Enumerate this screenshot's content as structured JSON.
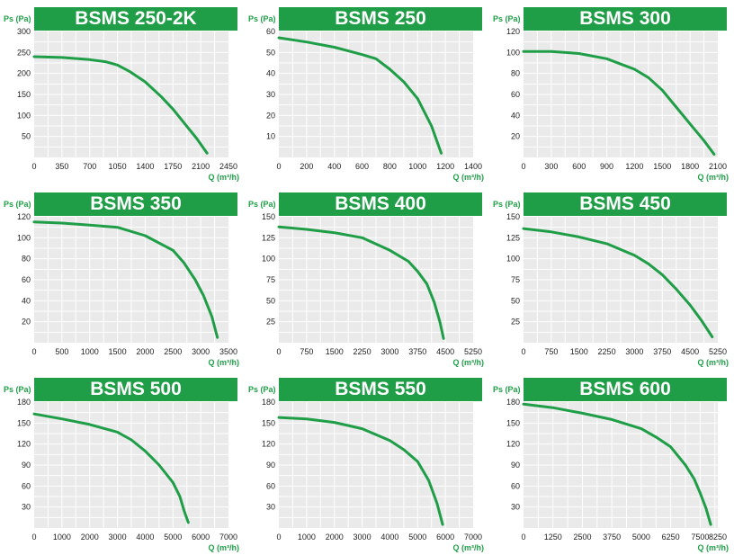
{
  "colors": {
    "banner": "#1f9e47",
    "curve": "#1f9e47",
    "plot_bg": "#eaeaea",
    "grid": "#ffffff",
    "axis_label": "#1f9e47"
  },
  "chart_data": [
    {
      "type": "line",
      "title": "BSMS 250-2K",
      "ylabel": "Ps (Pa)",
      "xlabel": "Q (m³/h)",
      "xticks": [
        0,
        350,
        700,
        1050,
        1400,
        1750,
        2100,
        2450
      ],
      "yticks": [
        50,
        100,
        150,
        200,
        250,
        300
      ],
      "xlim": [
        0,
        2450
      ],
      "ylim": [
        0,
        300
      ],
      "grid": true,
      "series": [
        {
          "x": [
            0,
            350,
            700,
            900,
            1050,
            1200,
            1400,
            1600,
            1750,
            1900,
            2050,
            2180
          ],
          "y": [
            240,
            238,
            233,
            228,
            220,
            205,
            180,
            145,
            115,
            80,
            45,
            10
          ]
        }
      ]
    },
    {
      "type": "line",
      "title": "BSMS 250",
      "ylabel": "Ps (Pa)",
      "xlabel": "Q (m³/h)",
      "xticks": [
        0,
        200,
        400,
        600,
        800,
        1000,
        1200,
        1400
      ],
      "yticks": [
        10,
        20,
        30,
        40,
        50,
        60
      ],
      "xlim": [
        0,
        1400
      ],
      "ylim": [
        0,
        60
      ],
      "grid": true,
      "series": [
        {
          "x": [
            0,
            200,
            400,
            600,
            700,
            800,
            900,
            1000,
            1100,
            1170
          ],
          "y": [
            57,
            55,
            52.5,
            49,
            47,
            42,
            36,
            28,
            15,
            2
          ]
        }
      ]
    },
    {
      "type": "line",
      "title": "BSMS 300",
      "ylabel": "Ps (Pa)",
      "xlabel": "Q (m³/h)",
      "xticks": [
        0,
        300,
        600,
        900,
        1200,
        1500,
        1800,
        2100
      ],
      "yticks": [
        20,
        40,
        60,
        80,
        100,
        120
      ],
      "xlim": [
        0,
        2100
      ],
      "ylim": [
        0,
        120
      ],
      "grid": true,
      "series": [
        {
          "x": [
            0,
            300,
            600,
            900,
            1050,
            1200,
            1350,
            1500,
            1650,
            1800,
            1950,
            2060
          ],
          "y": [
            101,
            101,
            99,
            94,
            89,
            84,
            76,
            64,
            48,
            32,
            16,
            3
          ]
        }
      ]
    },
    {
      "type": "line",
      "title": "BSMS 350",
      "ylabel": "Ps (Pa)",
      "xlabel": "Q (m³/h)",
      "xticks": [
        0,
        500,
        1000,
        1500,
        2000,
        2500,
        3000,
        3500
      ],
      "yticks": [
        20,
        40,
        60,
        80,
        100,
        120
      ],
      "xlim": [
        0,
        3500
      ],
      "ylim": [
        0,
        120
      ],
      "grid": true,
      "series": [
        {
          "x": [
            0,
            500,
            1000,
            1500,
            2000,
            2500,
            2700,
            2900,
            3050,
            3200,
            3300
          ],
          "y": [
            115,
            114,
            112,
            110,
            102,
            88,
            76,
            60,
            45,
            25,
            5
          ]
        }
      ]
    },
    {
      "type": "line",
      "title": "BSMS 400",
      "ylabel": "Ps (Pa)",
      "xlabel": "Q (m³/h)",
      "xticks": [
        0,
        750,
        1500,
        2250,
        3000,
        3750,
        4500,
        5250
      ],
      "yticks": [
        25,
        50,
        75,
        100,
        125,
        150
      ],
      "xlim": [
        0,
        5250
      ],
      "ylim": [
        0,
        150
      ],
      "grid": true,
      "series": [
        {
          "x": [
            0,
            750,
            1500,
            2250,
            3000,
            3500,
            3750,
            4000,
            4200,
            4350,
            4450
          ],
          "y": [
            138,
            135,
            131,
            125,
            110,
            97,
            85,
            70,
            48,
            25,
            5
          ]
        }
      ]
    },
    {
      "type": "line",
      "title": "BSMS 450",
      "ylabel": "Ps (Pa)",
      "xlabel": "Q (m³/h)",
      "xticks": [
        0,
        750,
        1500,
        2250,
        3000,
        3750,
        4500,
        5250
      ],
      "yticks": [
        25,
        50,
        75,
        100,
        125,
        150
      ],
      "xlim": [
        0,
        5250
      ],
      "ylim": [
        0,
        150
      ],
      "grid": true,
      "series": [
        {
          "x": [
            0,
            750,
            1500,
            2250,
            3000,
            3375,
            3750,
            4125,
            4500,
            4800,
            5100
          ],
          "y": [
            136,
            132,
            126,
            118,
            104,
            94,
            81,
            64,
            45,
            27,
            7
          ]
        }
      ]
    },
    {
      "type": "line",
      "title": "BSMS 500",
      "ylabel": "Ps (Pa)",
      "xlabel": "Q (m³/h)",
      "xticks": [
        0,
        1000,
        2000,
        3000,
        4000,
        5000,
        6000,
        7000
      ],
      "yticks": [
        30,
        60,
        90,
        120,
        150,
        180
      ],
      "xlim": [
        0,
        7000
      ],
      "ylim": [
        0,
        180
      ],
      "grid": true,
      "series": [
        {
          "x": [
            0,
            1000,
            2000,
            3000,
            3500,
            4000,
            4500,
            5000,
            5250,
            5400,
            5550
          ],
          "y": [
            163,
            156,
            148,
            137,
            126,
            110,
            90,
            65,
            45,
            25,
            8
          ]
        }
      ]
    },
    {
      "type": "line",
      "title": "BSMS 550",
      "ylabel": "Ps (Pa)",
      "xlabel": "Q (m³/h)",
      "xticks": [
        0,
        1000,
        2000,
        3000,
        4000,
        5000,
        6000,
        7000
      ],
      "yticks": [
        30,
        60,
        90,
        120,
        150,
        180
      ],
      "xlim": [
        0,
        7000
      ],
      "ylim": [
        0,
        180
      ],
      "grid": true,
      "series": [
        {
          "x": [
            0,
            1000,
            2000,
            3000,
            4000,
            4500,
            5000,
            5400,
            5700,
            5900
          ],
          "y": [
            158,
            156,
            151,
            142,
            125,
            112,
            95,
            68,
            35,
            5
          ]
        }
      ]
    },
    {
      "type": "line",
      "title": "BSMS 600",
      "ylabel": "Ps (Pa)",
      "xlabel": "Q (m³/h)",
      "xticks": [
        0,
        1250,
        2500,
        3750,
        5000,
        6250,
        7500,
        8250
      ],
      "yticks": [
        30,
        60,
        90,
        120,
        150,
        180
      ],
      "xlim": [
        0,
        8250
      ],
      "ylim": [
        0,
        180
      ],
      "grid": true,
      "series": [
        {
          "x": [
            0,
            1250,
            2500,
            3750,
            5000,
            5625,
            6250,
            6875,
            7250,
            7500,
            7750,
            7950
          ],
          "y": [
            177,
            172,
            164,
            155,
            142,
            130,
            116,
            90,
            70,
            50,
            28,
            5
          ]
        }
      ]
    }
  ]
}
